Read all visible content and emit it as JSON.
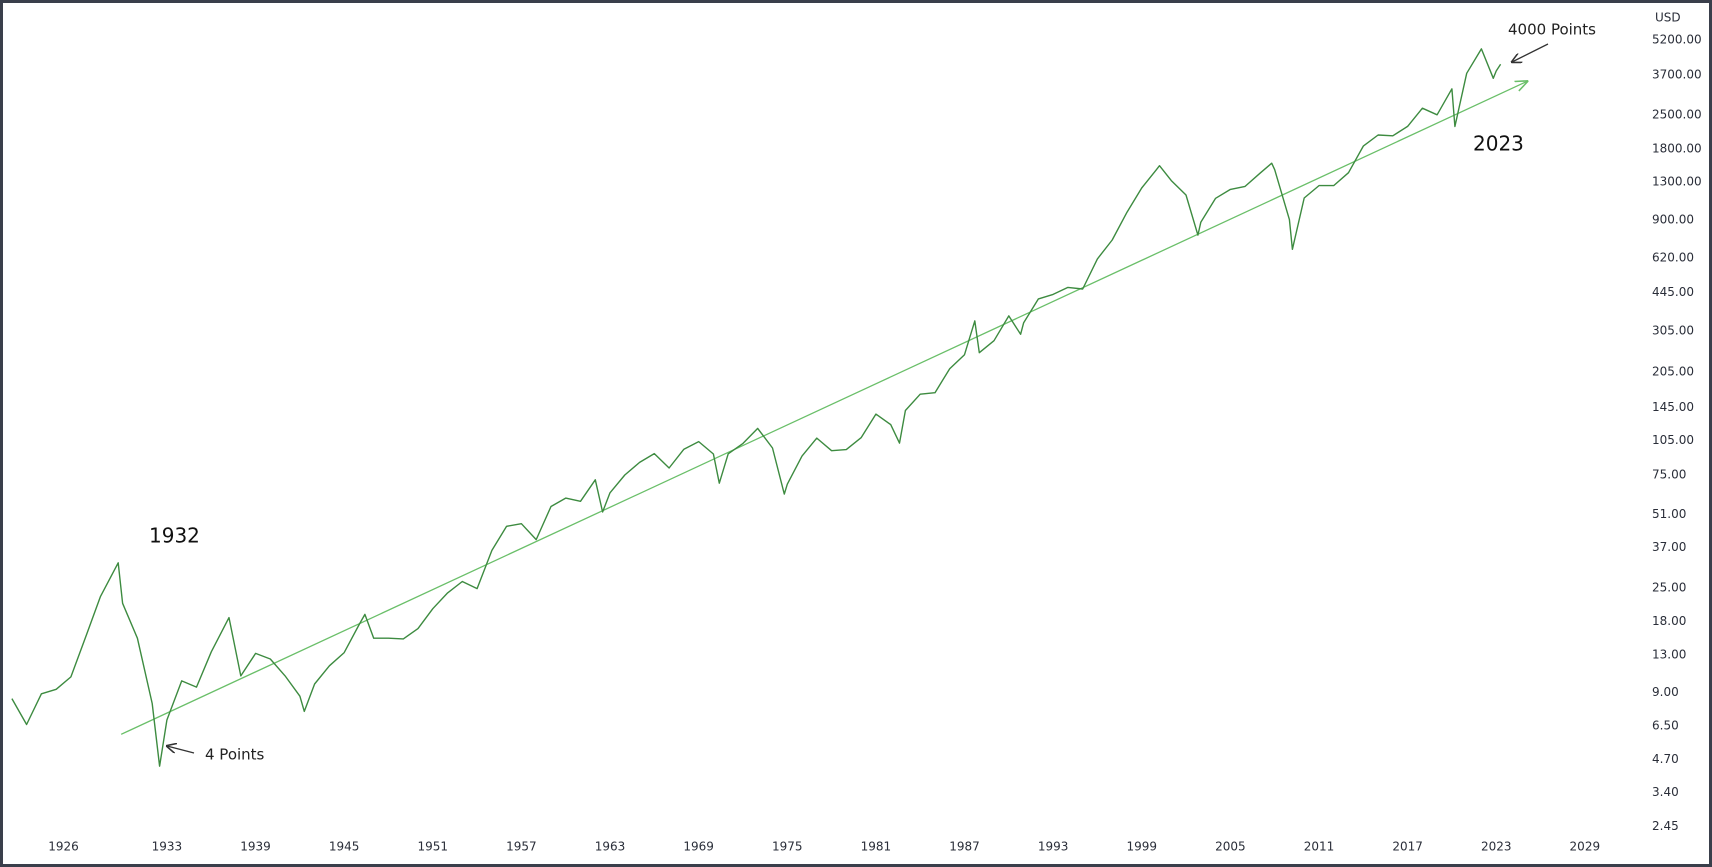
{
  "chart_data": {
    "type": "line",
    "axis_unit": "USD",
    "annotations": [
      "1932",
      "2023",
      "4000 Points",
      "4 Points"
    ],
    "log_scale": true,
    "grid": false,
    "xlim": [
      1921.9,
      2032.6
    ],
    "ylim": [
      2.25,
      7450
    ],
    "xticks": [
      1926,
      1933,
      1939,
      1945,
      1951,
      1957,
      1963,
      1969,
      1975,
      1981,
      1987,
      1993,
      1999,
      2005,
      2011,
      2017,
      2023,
      2029
    ],
    "yticks": [
      {
        "value": 2.45,
        "label": "2.45"
      },
      {
        "value": 3.4,
        "label": "3.40"
      },
      {
        "value": 4.7,
        "label": "4.70"
      },
      {
        "value": 6.5,
        "label": "6.50"
      },
      {
        "value": 9,
        "label": "9.00"
      },
      {
        "value": 13,
        "label": "13.00"
      },
      {
        "value": 18,
        "label": "18.00"
      },
      {
        "value": 25,
        "label": "25.00"
      },
      {
        "value": 37,
        "label": "37.00"
      },
      {
        "value": 51,
        "label": "51.00"
      },
      {
        "value": 75,
        "label": "75.00"
      },
      {
        "value": 105,
        "label": "105.00"
      },
      {
        "value": 145,
        "label": "145.00"
      },
      {
        "value": 205,
        "label": "205.00"
      },
      {
        "value": 305,
        "label": "305.00"
      },
      {
        "value": 445,
        "label": "445.00"
      },
      {
        "value": 620,
        "label": "620.00"
      },
      {
        "value": 900,
        "label": "900.00"
      },
      {
        "value": 1300,
        "label": "1300.00"
      },
      {
        "value": 1800,
        "label": "1800.00"
      },
      {
        "value": 2500,
        "label": "2500.00"
      },
      {
        "value": 3700,
        "label": "3700.00"
      },
      {
        "value": 5200,
        "label": "5200.00"
      }
    ],
    "series": [
      {
        "color": "#3d8b40",
        "x": [
          1922.5,
          1923.5,
          1924.5,
          1925.5,
          1926.5,
          1927.5,
          1928.5,
          1929.7,
          1930.0,
          1931.0,
          1932.0,
          1932.5,
          1933.0,
          1934.0,
          1935.0,
          1936.0,
          1937.2,
          1938.0,
          1939.0,
          1940.0,
          1941.0,
          1942.0,
          1942.3,
          1943.0,
          1944.0,
          1945.0,
          1946.0,
          1946.4,
          1947.0,
          1948.0,
          1949.0,
          1950.0,
          1951.0,
          1952.0,
          1953.0,
          1954.0,
          1955.0,
          1956.0,
          1957.0,
          1958.0,
          1959.0,
          1960.0,
          1961.0,
          1962.0,
          1962.5,
          1963.0,
          1964.0,
          1965.0,
          1966.0,
          1967.0,
          1968.0,
          1969.0,
          1970.0,
          1970.4,
          1971.0,
          1972.0,
          1973.0,
          1974.0,
          1974.8,
          1975.0,
          1976.0,
          1977.0,
          1978.0,
          1979.0,
          1980.0,
          1981.0,
          1982.0,
          1982.6,
          1983.0,
          1984.0,
          1985.0,
          1986.0,
          1987.0,
          1987.7,
          1988.0,
          1989.0,
          1990.0,
          1990.8,
          1991.0,
          1992.0,
          1993.0,
          1994.0,
          1995.0,
          1996.0,
          1997.0,
          1998.0,
          1999.0,
          2000.0,
          2000.2,
          2001.0,
          2002.0,
          2002.8,
          2003.0,
          2004.0,
          2005.0,
          2006.0,
          2007.0,
          2007.8,
          2008.0,
          2009.0,
          2009.2,
          2010.0,
          2011.0,
          2012.0,
          2013.0,
          2014.0,
          2015.0,
          2016.0,
          2017.0,
          2018.0,
          2019.0,
          2020.0,
          2020.2,
          2021.0,
          2022.0,
          2022.8,
          2023.0,
          2023.3
        ],
        "values": [
          8.5,
          6.6,
          8.9,
          9.3,
          10.5,
          15.5,
          23,
          31.9,
          21.5,
          15.3,
          8.1,
          4.4,
          6.9,
          10.1,
          9.5,
          13.4,
          18.7,
          10.6,
          13.2,
          12.5,
          10.6,
          8.7,
          7.5,
          9.8,
          11.7,
          13.3,
          17.4,
          19.3,
          15.3,
          15.3,
          15.2,
          16.8,
          20.4,
          23.8,
          26.6,
          24.8,
          36.0,
          45.5,
          46.7,
          40.0,
          55.2,
          59.9,
          58.1,
          71.6,
          52.3,
          63.1,
          75.0,
          84.8,
          92.4,
          80.3,
          96.5,
          103.9,
          92.1,
          69.3,
          92.2,
          102.1,
          118.1,
          97.6,
          62.3,
          68.6,
          90.2,
          107.5,
          95.1,
          96.1,
          107.9,
          135.8,
          122.6,
          102.4,
          140.6,
          164.9,
          167.2,
          211.3,
          242.2,
          336.8,
          247.1,
          277.7,
          353.4,
          295.5,
          330.2,
          417.1,
          435.7,
          466.5,
          459.3,
          615.9,
          740.7,
          970.4,
          1229.2,
          1469.3,
          1527,
          1320.3,
          1148.1,
          776.8,
          879.8,
          1111.9,
          1211.9,
          1248.3,
          1418.3,
          1565.2,
          1468.4,
          903.3,
          676.5,
          1115.1,
          1257.6,
          1257.6,
          1426.2,
          1848.4,
          2058.9,
          2043.9,
          2238.8,
          2673.6,
          2506.9,
          3230.8,
          2237.4,
          3756.1,
          4766.2,
          3577,
          3839.5,
          4100
        ]
      }
    ],
    "trendline": {
      "x": [
        1929.9,
        2025.1
      ],
      "values": [
        6.0,
        3475
      ],
      "color": "#6abf69"
    }
  }
}
